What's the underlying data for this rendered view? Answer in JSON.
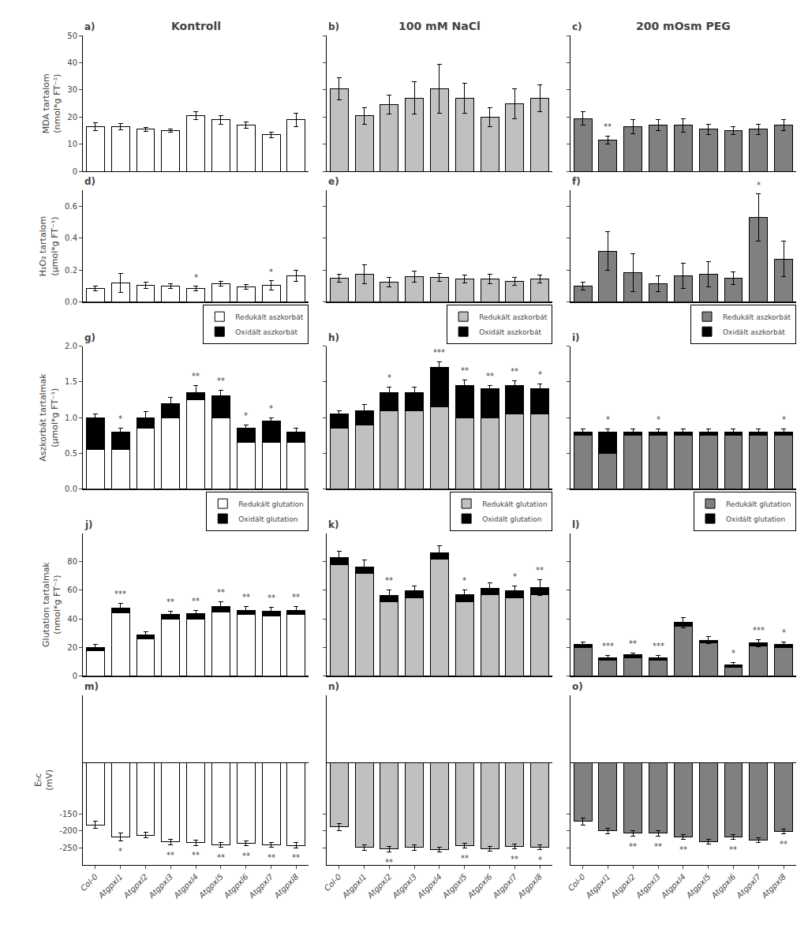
{
  "chart_data": [
    {
      "type": "bar",
      "title": "Kontroll",
      "annotations": [
        "a)"
      ],
      "ylabel": "MDA tartalom\n(nmol*g FT⁻¹)",
      "tick_labels": "y",
      "grid": false,
      "categories": [
        "Col-0",
        "Atgpxl1",
        "Atgpxl2",
        "Atgpxl3",
        "Atgpxl4",
        "Atgpxl5",
        "Atgpxl6",
        "Atgpxl7",
        "Atgpxl8"
      ],
      "color": "#FFFFFF",
      "values": [
        16.5,
        16.5,
        15.5,
        15.0,
        20.5,
        19.0,
        17.0,
        13.5,
        19.0
      ],
      "errors": [
        1.5,
        1.2,
        0.8,
        0.5,
        1.5,
        1.5,
        1.2,
        1.0,
        2.5
      ],
      "ylim": [
        0,
        50
      ],
      "yticks": [
        0,
        10,
        20,
        30,
        40,
        50
      ]
    },
    {
      "type": "bar",
      "title": "100 mM NaCl",
      "annotations": [
        "b)"
      ],
      "tick_labels": false,
      "grid": false,
      "categories": [
        "Col-0",
        "Atgpxl1",
        "Atgpxl2",
        "Atgpxl3",
        "Atgpxl4",
        "Atgpxl5",
        "Atgpxl6",
        "Atgpxl7",
        "Atgpxl8"
      ],
      "color": "#C0C0C0",
      "values": [
        30.5,
        20.5,
        24.5,
        27.0,
        30.5,
        27.0,
        20.0,
        25.0,
        27.0
      ],
      "errors": [
        4.0,
        3.0,
        3.5,
        6.0,
        9.0,
        5.5,
        3.5,
        5.5,
        5.0
      ],
      "ylim": [
        0,
        50
      ],
      "yticks": [
        0,
        10,
        20,
        30,
        40,
        50
      ]
    },
    {
      "type": "bar",
      "title": "200 mOsm PEG",
      "annotations": [
        "c)"
      ],
      "tick_labels": false,
      "grid": false,
      "categories": [
        "Col-0",
        "Atgpxl1",
        "Atgpxl2",
        "Atgpxl3",
        "Atgpxl4",
        "Atgpxl5",
        "Atgpxl6",
        "Atgpxl7",
        "Atgpxl8"
      ],
      "color": "#808080",
      "values": [
        19.5,
        11.5,
        16.5,
        17.0,
        17.0,
        15.5,
        15.0,
        15.5,
        17.0
      ],
      "errors": [
        2.5,
        1.5,
        2.5,
        2.0,
        2.5,
        2.0,
        1.5,
        2.0,
        2.0
      ],
      "significance": [
        null,
        "**",
        null,
        null,
        null,
        null,
        null,
        null,
        null
      ],
      "ylim": [
        0,
        50
      ],
      "yticks": [
        0,
        10,
        20,
        30,
        40,
        50
      ]
    },
    {
      "type": "bar",
      "annotations": [
        "d)"
      ],
      "ylabel": "H₂O₂ tartalom\n(μmol*g FT⁻¹)",
      "tick_labels": "y",
      "grid": false,
      "categories": [
        "Col-0",
        "Atgpxl1",
        "Atgpxl2",
        "Atgpxl3",
        "Atgpxl4",
        "Atgpxl5",
        "Atgpxl6",
        "Atgpxl7",
        "Atgpxl8"
      ],
      "color": "#FFFFFF",
      "values": [
        0.085,
        0.12,
        0.105,
        0.1,
        0.085,
        0.115,
        0.095,
        0.105,
        0.165
      ],
      "errors": [
        0.015,
        0.06,
        0.02,
        0.015,
        0.015,
        0.015,
        0.015,
        0.03,
        0.035
      ],
      "significance": [
        null,
        null,
        null,
        null,
        "*",
        null,
        null,
        "*",
        null
      ],
      "ylim": [
        0,
        0.7
      ],
      "yticks": [
        {
          "value": 0.0,
          "label": "0.0"
        },
        0.2,
        0.4,
        0.6
      ]
    },
    {
      "type": "bar",
      "annotations": [
        "e)"
      ],
      "tick_labels": false,
      "grid": false,
      "categories": [
        "Col-0",
        "Atgpxl1",
        "Atgpxl2",
        "Atgpxl3",
        "Atgpxl4",
        "Atgpxl5",
        "Atgpxl6",
        "Atgpxl7",
        "Atgpxl8"
      ],
      "color": "#C0C0C0",
      "values": [
        0.15,
        0.175,
        0.125,
        0.16,
        0.155,
        0.145,
        0.145,
        0.13,
        0.145
      ],
      "errors": [
        0.025,
        0.06,
        0.03,
        0.035,
        0.025,
        0.025,
        0.03,
        0.025,
        0.025
      ],
      "ylim": [
        0,
        0.7
      ],
      "yticks": [
        0,
        0.2,
        0.4,
        0.6
      ]
    },
    {
      "type": "bar",
      "annotations": [
        "f)"
      ],
      "tick_labels": false,
      "grid": false,
      "categories": [
        "Col-0",
        "Atgpxl1",
        "Atgpxl2",
        "Atgpxl3",
        "Atgpxl4",
        "Atgpxl5",
        "Atgpxl6",
        "Atgpxl7",
        "Atgpxl8"
      ],
      "color": "#808080",
      "values": [
        0.1,
        0.32,
        0.185,
        0.115,
        0.165,
        0.175,
        0.15,
        0.53,
        0.27
      ],
      "errors": [
        0.025,
        0.12,
        0.12,
        0.05,
        0.08,
        0.08,
        0.04,
        0.15,
        0.11
      ],
      "significance": [
        null,
        null,
        null,
        null,
        null,
        null,
        null,
        "*",
        null
      ],
      "ylim": [
        0,
        0.7
      ],
      "yticks": [
        0,
        0.2,
        0.4,
        0.6
      ]
    },
    {
      "type": "bar",
      "stacked": true,
      "legend": "upper right",
      "annotations": [
        "g)"
      ],
      "ylabel": "Aszkorbát tartalmak\n(μmol*g FT⁻¹)",
      "tick_labels": "y",
      "grid": false,
      "categories": [
        "Col-0",
        "Atgpxl1",
        "Atgpxl2",
        "Atgpxl3",
        "Atgpxl4",
        "Atgpxl5",
        "Atgpxl6",
        "Atgpxl7",
        "Atgpxl8"
      ],
      "series": [
        {
          "name": "Redukált aszkorbát",
          "color": "#FFFFFF",
          "values": [
            0.55,
            0.55,
            0.85,
            1.0,
            1.25,
            1.0,
            0.65,
            0.65,
            0.65
          ]
        },
        {
          "name": "Oxidált aszkorbát",
          "color": "#000000",
          "values": [
            0.45,
            0.25,
            0.15,
            0.2,
            0.1,
            0.3,
            0.2,
            0.3,
            0.15
          ],
          "errors": [
            0.05,
            0.05,
            0.08,
            0.08,
            0.1,
            0.08,
            0.05,
            0.05,
            0.05
          ],
          "significance": [
            null,
            "*",
            null,
            null,
            "**",
            "**",
            "*",
            "*",
            null
          ]
        }
      ],
      "ylim": [
        0,
        2.0
      ],
      "yticks": [
        {
          "value": 0,
          "label": "0.0"
        },
        0.5,
        {
          "value": 1,
          "label": "1.0"
        },
        1.5,
        {
          "value": 2,
          "label": "2.0"
        }
      ]
    },
    {
      "type": "bar",
      "stacked": true,
      "legend": "upper right",
      "annotations": [
        "h)"
      ],
      "tick_labels": false,
      "grid": false,
      "categories": [
        "Col-0",
        "Atgpxl1",
        "Atgpxl2",
        "Atgpxl3",
        "Atgpxl4",
        "Atgpxl5",
        "Atgpxl6",
        "Atgpxl7",
        "Atgpxl8"
      ],
      "series": [
        {
          "name": "Redukált aszkorbát",
          "color": "#C0C0C0",
          "values": [
            0.85,
            0.9,
            1.1,
            1.1,
            1.15,
            1.0,
            1.0,
            1.05,
            1.05
          ]
        },
        {
          "name": "Oxidált aszkorbát",
          "color": "#000000",
          "values": [
            0.2,
            0.2,
            0.25,
            0.25,
            0.55,
            0.45,
            0.4,
            0.4,
            0.35
          ],
          "errors": [
            0.05,
            0.08,
            0.08,
            0.08,
            0.08,
            0.08,
            0.05,
            0.07,
            0.07
          ],
          "significance": [
            null,
            null,
            "*",
            null,
            "***",
            "**",
            "**",
            "**",
            "*"
          ]
        }
      ],
      "ylim": [
        0,
        2.0
      ],
      "yticks": [
        0,
        0.5,
        1,
        1.5,
        2
      ]
    },
    {
      "type": "bar",
      "stacked": true,
      "legend": "upper right",
      "annotations": [
        "i)"
      ],
      "tick_labels": false,
      "grid": false,
      "categories": [
        "Col-0",
        "Atgpxl1",
        "Atgpxl2",
        "Atgpxl3",
        "Atgpxl4",
        "Atgpxl5",
        "Atgpxl6",
        "Atgpxl7",
        "Atgpxl8"
      ],
      "series": [
        {
          "name": "Redukált aszkorbát",
          "color": "#808080",
          "values": [
            0.75,
            0.5,
            0.75,
            0.75,
            0.75,
            0.75,
            0.75,
            0.75,
            0.75
          ]
        },
        {
          "name": "Oxidált aszkorbát",
          "color": "#000000",
          "values": [
            0.05,
            0.3,
            0.05,
            0.05,
            0.05,
            0.05,
            0.05,
            0.05,
            0.05
          ],
          "errors": [
            0.04,
            0.04,
            0.04,
            0.04,
            0.04,
            0.04,
            0.04,
            0.04,
            0.04
          ],
          "significance": [
            null,
            "*",
            null,
            "*",
            null,
            null,
            null,
            null,
            "*"
          ]
        }
      ],
      "ylim": [
        0,
        2.0
      ],
      "yticks": [
        0,
        0.5,
        1,
        1.5,
        2
      ]
    },
    {
      "type": "bar",
      "stacked": true,
      "legend": "upper right",
      "annotations": [
        "j)"
      ],
      "ylabel": "Glutation tartalmak\n(nmol*g FT⁻¹)",
      "tick_labels": "y",
      "grid": false,
      "categories": [
        "Col-0",
        "Atgpxl1",
        "Atgpxl2",
        "Atgpxl3",
        "Atgpxl4",
        "Atgpxl5",
        "Atgpxl6",
        "Atgpxl7",
        "Atgpxl8"
      ],
      "series": [
        {
          "name": "Redukált glutation",
          "color": "#FFFFFF",
          "values": [
            18.0,
            44.0,
            26.0,
            40.0,
            40.0,
            45.0,
            43.0,
            42.0,
            43.0
          ]
        },
        {
          "name": "Oxidált glutation",
          "color": "#000000",
          "values": [
            2.0,
            3.5,
            2.5,
            3.0,
            3.5,
            3.5,
            3.0,
            3.5,
            3.0
          ],
          "errors": [
            2.0,
            3.5,
            2.5,
            2.5,
            2.5,
            3.5,
            2.5,
            2.5,
            2.5
          ],
          "significance": [
            null,
            "***",
            null,
            "**",
            "**",
            "**",
            "**",
            "**",
            "**"
          ]
        }
      ],
      "ylim": [
        0,
        100
      ],
      "yticks": [
        0,
        20,
        40,
        60,
        80
      ]
    },
    {
      "type": "bar",
      "stacked": true,
      "legend": "upper right",
      "annotations": [
        "k)"
      ],
      "tick_labels": false,
      "grid": false,
      "categories": [
        "Col-0",
        "Atgpxl1",
        "Atgpxl2",
        "Atgpxl3",
        "Atgpxl4",
        "Atgpxl5",
        "Atgpxl6",
        "Atgpxl7",
        "Atgpxl8"
      ],
      "series": [
        {
          "name": "Redukált glutation",
          "color": "#C0C0C0",
          "values": [
            78.0,
            72.0,
            52.0,
            55.0,
            82.0,
            52.0,
            57.0,
            55.0,
            57.0
          ]
        },
        {
          "name": "Oxidált glutation",
          "color": "#000000",
          "values": [
            5.0,
            4.5,
            4.5,
            4.5,
            4.5,
            5.0,
            4.5,
            4.5,
            5.0
          ],
          "errors": [
            4.5,
            4.5,
            3.5,
            3.5,
            4.5,
            3.5,
            3.5,
            3.5,
            5.5
          ],
          "significance": [
            null,
            null,
            "**",
            null,
            null,
            "*",
            null,
            "*",
            "**"
          ]
        }
      ],
      "ylim": [
        0,
        100
      ],
      "yticks": [
        0,
        20,
        40,
        60,
        80
      ]
    },
    {
      "type": "bar",
      "stacked": true,
      "legend": "upper right",
      "annotations": [
        "l)"
      ],
      "tick_labels": false,
      "grid": false,
      "categories": [
        "Col-0",
        "Atgpxl1",
        "Atgpxl2",
        "Atgpxl3",
        "Atgpxl4",
        "Atgpxl5",
        "Atgpxl6",
        "Atgpxl7",
        "Atgpxl8"
      ],
      "series": [
        {
          "name": "Redukált glutation",
          "color": "#808080",
          "values": [
            20.0,
            11.0,
            13.0,
            11.0,
            35.0,
            23.0,
            6.0,
            21.0,
            20.0
          ]
        },
        {
          "name": "Oxidált glutation",
          "color": "#000000",
          "values": [
            2.0,
            2.0,
            2.0,
            2.0,
            2.5,
            2.0,
            2.0,
            2.0,
            2.0
          ],
          "errors": [
            2.0,
            1.2,
            1.2,
            1.2,
            3.5,
            2.5,
            1.2,
            2.5,
            1.8
          ],
          "significance": [
            null,
            "***",
            "**",
            "***",
            null,
            null,
            "*",
            "***",
            "*"
          ]
        }
      ],
      "ylim": [
        0,
        100
      ],
      "yticks": [
        0,
        20,
        40,
        60,
        80
      ]
    },
    {
      "type": "bar",
      "annotations": [
        "m)"
      ],
      "ylabel": "Eₕc\n(mV)",
      "grid": false,
      "categories": [
        "Col-0",
        "Atgpxl1",
        "Atgpxl2",
        "Atgpxl3",
        "Atgpxl4",
        "Atgpxl5",
        "Atgpxl6",
        "Atgpxl7",
        "Atgpxl8"
      ],
      "color": "#FFFFFF",
      "values": [
        -182,
        -218,
        -212,
        -232,
        -235,
        -240,
        -237,
        -241,
        -242
      ],
      "errors": [
        10,
        12,
        8,
        8,
        7,
        7,
        7,
        7,
        7
      ],
      "significance": [
        null,
        "*",
        null,
        "**",
        "**",
        "**",
        "**",
        "**",
        "**"
      ],
      "ylim": [
        -300,
        200
      ],
      "yticks": [
        -250,
        -200,
        -150
      ]
    },
    {
      "type": "bar",
      "annotations": [
        "n)"
      ],
      "tick_labels": "x",
      "grid": false,
      "categories": [
        "Col-0",
        "Atgpxl1",
        "Atgpxl2",
        "Atgpxl3",
        "Atgpxl4",
        "Atgpxl5",
        "Atgpxl6",
        "Atgpxl7",
        "Atgpxl8"
      ],
      "color": "#C0C0C0",
      "values": [
        -188,
        -248,
        -253,
        -248,
        -255,
        -243,
        -253,
        -245,
        -248
      ],
      "errors": [
        10,
        8,
        8,
        8,
        7,
        7,
        7,
        7,
        7
      ],
      "significance": [
        null,
        null,
        "**",
        null,
        null,
        "**",
        null,
        "**",
        "*"
      ],
      "ylim": [
        -300,
        200
      ],
      "yticks": [
        -250,
        -200,
        -150
      ]
    },
    {
      "type": "bar",
      "annotations": [
        "o)"
      ],
      "tick_labels": "x",
      "grid": false,
      "categories": [
        "Col-0",
        "Atgpxl1",
        "Atgpxl2",
        "Atgpxl3",
        "Atgpxl4",
        "Atgpxl5",
        "Atgpxl6",
        "Atgpxl7",
        "Atgpxl8"
      ],
      "color": "#808080",
      "values": [
        -172,
        -200,
        -207,
        -207,
        -218,
        -232,
        -218,
        -226,
        -202
      ],
      "errors": [
        10,
        8,
        8,
        8,
        7,
        7,
        7,
        7,
        7
      ],
      "significance": [
        null,
        null,
        "**",
        "**",
        "**",
        null,
        "**",
        null,
        "**"
      ],
      "ylim": [
        -300,
        200
      ],
      "yticks": [
        -250,
        -200,
        -150
      ]
    }
  ]
}
